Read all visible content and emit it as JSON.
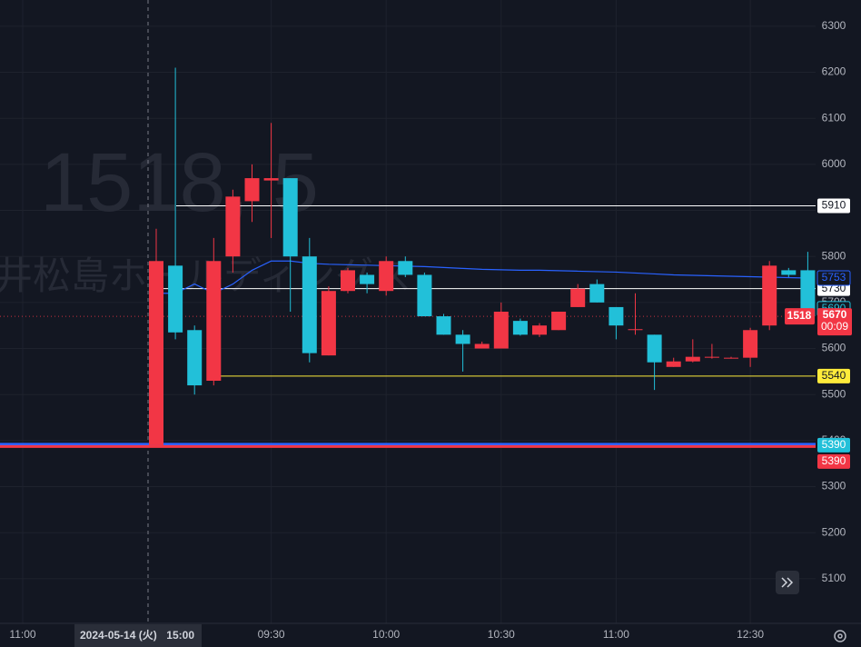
{
  "chart_data": {
    "type": "candlestick",
    "watermark_symbol": "1518, 5",
    "watermark_name": "三井松島ホールディングス",
    "categories": [
      null,
      null,
      null,
      null,
      null,
      null,
      "09:30",
      null,
      null,
      null,
      null,
      null,
      "10:00",
      null,
      null,
      null,
      null,
      null,
      "10:30",
      null,
      null,
      null,
      null,
      null,
      "11:00",
      null,
      null,
      null,
      null,
      null,
      null,
      "12:30",
      null,
      null,
      null
    ],
    "open": [
      5390,
      5780,
      5640,
      5530,
      5800,
      5920,
      5965,
      5970,
      5800,
      5585,
      5725,
      5760,
      5725,
      5790,
      5760,
      5670,
      5630,
      5600,
      5600,
      5660,
      5630,
      5640,
      5690,
      5740,
      5690,
      5640,
      5630,
      5560,
      5572,
      5580,
      5580,
      5580,
      5650,
      5770,
      5770
    ],
    "high": [
      5860,
      6210,
      5650,
      5840,
      5945,
      6000,
      6090,
      5970,
      5840,
      5735,
      5775,
      5765,
      5800,
      5800,
      5765,
      5675,
      5640,
      5615,
      5700,
      5665,
      5655,
      5680,
      5740,
      5750,
      5690,
      5720,
      5630,
      5580,
      5620,
      5610,
      5582,
      5645,
      5790,
      5775,
      5810
    ],
    "low": [
      5390,
      5620,
      5500,
      5520,
      5765,
      5875,
      5840,
      5680,
      5570,
      5585,
      5720,
      5720,
      5715,
      5755,
      5670,
      5630,
      5550,
      5600,
      5600,
      5628,
      5625,
      5640,
      5690,
      5700,
      5620,
      5630,
      5510,
      5560,
      5570,
      5578,
      5578,
      5560,
      5640,
      5755,
      5670
    ],
    "close": [
      5790,
      5635,
      5520,
      5790,
      5930,
      5970,
      5970,
      5800,
      5590,
      5725,
      5770,
      5740,
      5790,
      5760,
      5670,
      5630,
      5610,
      5610,
      5680,
      5630,
      5650,
      5680,
      5730,
      5700,
      5650,
      5642,
      5570,
      5572,
      5582,
      5582,
      5580,
      5640,
      5780,
      5760,
      5670
    ],
    "up_color": "#f23645",
    "down_color": "#22c0d9",
    "vwap": {
      "color": "#2962ff",
      "values": [
        5720,
        5720,
        5740,
        5720,
        5740,
        5770,
        5790,
        5790,
        5785,
        5783,
        5782,
        5781,
        5780,
        5779,
        5778,
        5776,
        5774,
        5772,
        5771,
        5770,
        5770,
        5769,
        5768,
        5767,
        5766,
        5764,
        5762,
        5760,
        5759,
        5758,
        5757,
        5756,
        5755,
        5754,
        5753
      ]
    },
    "levels": [
      {
        "value": 5910,
        "color": "#ffffff"
      },
      {
        "value": 5730,
        "color": "#ffffff"
      },
      {
        "value": 5540,
        "color": "#ffeb3b"
      },
      {
        "value": 5390,
        "color": "#2962ff"
      },
      {
        "value": 5390,
        "color": "#f23645"
      }
    ],
    "markers": [
      {
        "value": 5690,
        "color": "#22c0d9"
      }
    ],
    "symbol_tag": "1518",
    "countdown": "00:09",
    "ylim": [
      5003,
      6357
    ],
    "yticks": [
      5100,
      5200,
      5300,
      5400,
      5500,
      5600,
      5700,
      5800,
      5900,
      6000,
      6100,
      6200,
      6300
    ],
    "grid": true,
    "prev_session_label": "11:00",
    "crosshair_date": "2024-05-14 (火)",
    "crosshair_time": "15:00"
  }
}
